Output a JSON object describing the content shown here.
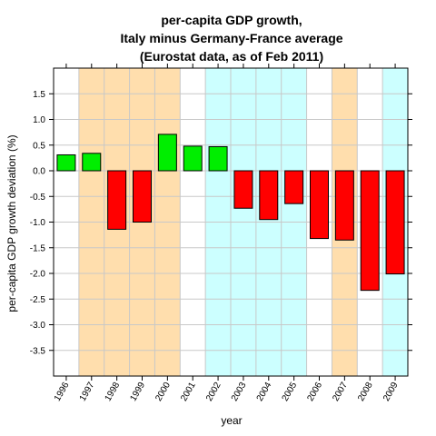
{
  "chart_data": {
    "type": "bar",
    "title": [
      "per-capita GDP growth,",
      "Italy minus Germany-France average",
      "(Eurostat data, as of Feb 2011)"
    ],
    "xlabel": "year",
    "ylabel": "per-capita GDP growth deviation (%)",
    "categories": [
      "1996",
      "1997",
      "1998",
      "1999",
      "2000",
      "2001",
      "2002",
      "2003",
      "2004",
      "2005",
      "2006",
      "2007",
      "2008",
      "2009"
    ],
    "values": [
      0.31,
      0.34,
      -1.14,
      -1.0,
      0.71,
      0.48,
      0.47,
      -0.73,
      -0.95,
      -0.64,
      -1.32,
      -1.35,
      -2.33,
      -2.01
    ],
    "ylim": [
      -4.0,
      2.0
    ],
    "yticks": [
      -3.5,
      -3.0,
      -2.5,
      -2.0,
      -1.5,
      -1.0,
      -0.5,
      0.0,
      0.5,
      1.0,
      1.5
    ],
    "ytick_labels": [
      "-3.5",
      "-3.0",
      "-2.5",
      "-2.0",
      "-1.5",
      "-1.0",
      "-0.5",
      "0.0",
      "0.5",
      "1.0",
      "1.5"
    ],
    "grid": true,
    "colors": {
      "positive": "#00ee00",
      "negative": "#ff0000",
      "band_orange": "#ffdead",
      "band_cyan": "#ccffff",
      "grid": "#c8c8c8"
    },
    "shaded_bands": [
      {
        "from": "1997",
        "to": "2000",
        "color": "#ffdead"
      },
      {
        "from": "2002",
        "to": "2005",
        "color": "#ccffff"
      },
      {
        "from": "2007",
        "to": "2007",
        "color": "#ffdead"
      },
      {
        "from": "2009",
        "to": "2009",
        "color": "#ccffff"
      }
    ]
  }
}
